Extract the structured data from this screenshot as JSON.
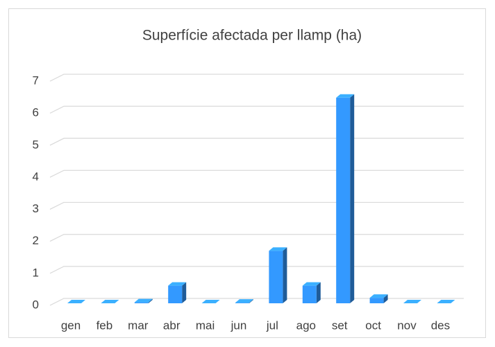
{
  "chart_data": {
    "type": "bar",
    "title": "Superfície afectada per llamp (ha)",
    "categories": [
      "gen",
      "feb",
      "mar",
      "abr",
      "mai",
      "jun",
      "jul",
      "ago",
      "set",
      "oct",
      "nov",
      "des"
    ],
    "values": [
      0,
      0,
      0.03,
      0.55,
      0,
      0.02,
      1.64,
      0.55,
      6.42,
      0.17,
      0,
      0
    ],
    "color": "#3399ff",
    "ylim": [
      0,
      7
    ],
    "yticks": [
      0,
      1,
      2,
      3,
      4,
      5,
      6,
      7
    ],
    "grid": true
  }
}
